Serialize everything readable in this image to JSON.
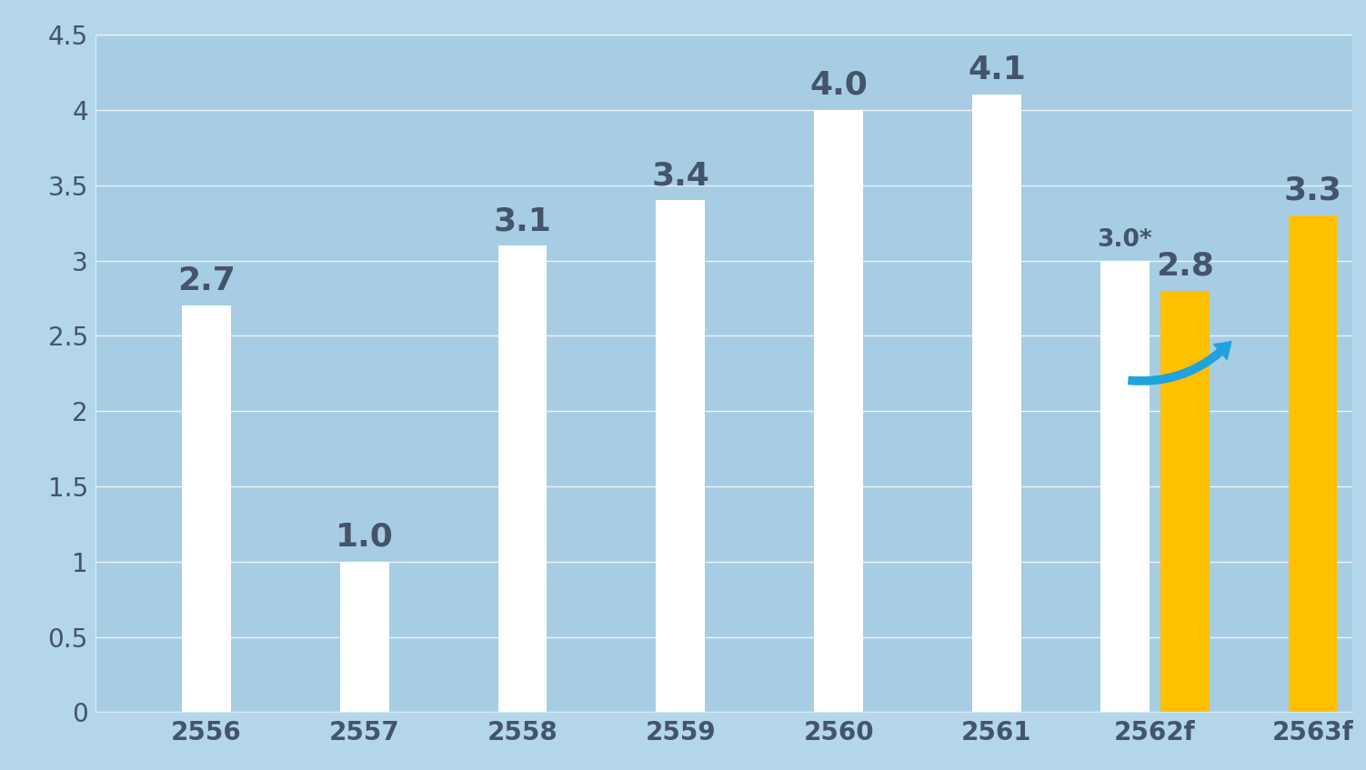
{
  "chart_data": {
    "type": "bar",
    "categories": [
      "2556",
      "2557",
      "2558",
      "2559",
      "2560",
      "2561",
      "2562f",
      "2563f"
    ],
    "series": [
      {
        "color": "#ffffff",
        "values": [
          2.7,
          1.0,
          3.1,
          3.4,
          4.0,
          4.1,
          3.0,
          null
        ],
        "value_labels": [
          "2.7",
          "1.0",
          "3.1",
          "3.4",
          "4.0",
          "4.1",
          "3.0*",
          null
        ]
      },
      {
        "color": "#ffc000",
        "values": [
          null,
          null,
          null,
          null,
          null,
          null,
          2.8,
          3.3
        ],
        "value_labels": [
          null,
          null,
          null,
          null,
          null,
          null,
          "2.8",
          "3.3"
        ]
      }
    ],
    "ylim": [
      0,
      4.5
    ],
    "yticks": [
      0,
      0.5,
      1,
      1.5,
      2,
      2.5,
      3,
      3.5,
      4,
      4.5
    ],
    "grid": true,
    "data_labels": true
  }
}
